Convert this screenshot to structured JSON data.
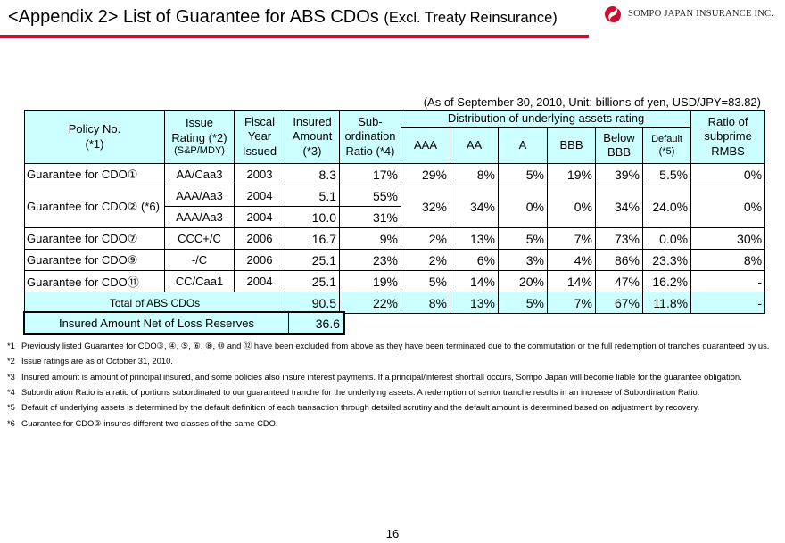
{
  "title": {
    "main": "<Appendix 2> List of Guarantee for ABS CDOs",
    "sub": "(Excl. Treaty Reinsurance)"
  },
  "logo": {
    "text": "SOMPO JAPAN INSURANCE INC.",
    "accent": "#c8102e"
  },
  "as_of": "(As of September 30, 2010, Unit: billions of yen, USD/JPY=83.82)",
  "table": {
    "headers": {
      "policy_no_1": "Policy No.",
      "policy_no_2": "(*1)",
      "issue_1": "Issue",
      "issue_2": "Rating (*2)",
      "issue_3": "(S&P/MDY)",
      "fiscal_1": "Fiscal",
      "fiscal_2": "Year",
      "fiscal_3": "Issued",
      "insured_1": "Insured",
      "insured_2": "Amount",
      "insured_3": "(*3)",
      "sub_1": "Sub-",
      "sub_2": "ordination",
      "sub_3": "Ratio (*4)",
      "distribution": "Distribution of underlying assets rating",
      "aaa": "AAA",
      "aa": "AA",
      "a": "A",
      "bbb": "BBB",
      "below_1": "Below",
      "below_2": "BBB",
      "default_1": "Default",
      "default_2": "(*5)",
      "ratio_1": "Ratio of",
      "ratio_2": "subprime",
      "ratio_3": "RMBS"
    },
    "rows": [
      {
        "policy": "Guarantee for CDO①",
        "rating": "AA/Caa3",
        "year": "2003",
        "amount": "8.3",
        "sub_ratio": "17%",
        "aaa": "29%",
        "aa": "8%",
        "a": "5%",
        "bbb": "19%",
        "below": "39%",
        "default": "5.5%",
        "subprime": "0%"
      },
      {
        "policy": "Guarantee for CDO② (*6)",
        "rating": "AAA/Aa3",
        "year": "2004",
        "amount": "5.1",
        "sub_ratio": "55%",
        "aaa": "32%",
        "aa": "34%",
        "a": "0%",
        "bbb": "0%",
        "below": "34%",
        "default": "24.0%",
        "subprime": "0%"
      },
      {
        "rating": "AAA/Aa3",
        "year": "2004",
        "amount": "10.0",
        "sub_ratio": "31%"
      },
      {
        "policy": "Guarantee for CDO⑦",
        "rating": "CCC+/C",
        "year": "2006",
        "amount": "16.7",
        "sub_ratio": "9%",
        "aaa": "2%",
        "aa": "13%",
        "a": "5%",
        "bbb": "7%",
        "below": "73%",
        "default": "0.0%",
        "subprime": "30%"
      },
      {
        "policy": "Guarantee for CDO⑨",
        "rating": "-/C",
        "year": "2006",
        "amount": "25.1",
        "sub_ratio": "23%",
        "aaa": "2%",
        "aa": "6%",
        "a": "3%",
        "bbb": "4%",
        "below": "86%",
        "default": "23.3%",
        "subprime": "8%"
      },
      {
        "policy": "Guarantee for CDO⑪",
        "rating": "CC/Caa1",
        "year": "2004",
        "amount": "25.1",
        "sub_ratio": "19%",
        "aaa": "5%",
        "aa": "14%",
        "a": "20%",
        "bbb": "14%",
        "below": "47%",
        "default": "16.2%",
        "subprime": "-"
      }
    ],
    "total": {
      "label": "Total of ABS CDOs",
      "amount": "90.5",
      "sub_ratio": "22%",
      "aaa": "8%",
      "aa": "13%",
      "a": "5%",
      "bbb": "7%",
      "below": "67%",
      "default": "11.8%",
      "subprime": "-"
    }
  },
  "net": {
    "label": "Insured Amount Net of Loss Reserves",
    "value": "36.6"
  },
  "notes": [
    {
      "mark": "*1",
      "text": "Previously listed Guarantee for CDO③, ④, ⑤, ⑥, ⑧, ⑩ and ⑫ have been excluded from above as they have been terminated due to the commutation or the full redemption of tranches guaranteed by us."
    },
    {
      "mark": "*2",
      "text": "Issue ratings are as of October 31, 2010."
    },
    {
      "mark": "*3",
      "text": "Insured amount is amount of principal insured, and some policies also insure interest payments.  If a principal/interest shortfall occurs, Sompo Japan will become liable for the guarantee obligation."
    },
    {
      "mark": "*4",
      "text": "Subordination Ratio is a ratio of portions subordinated to our guaranteed tranche for the underlying assets.  A redemption of senior tranche results in an increase of Subordination Ratio."
    },
    {
      "mark": "*5",
      "text": "Default of underlying assets is determined by the default definition of each transaction through detailed scrutiny and the default amount is determined based on adjustment by recovery."
    },
    {
      "mark": "*6",
      "text": "Guarantee for CDO② insures different two classes of the same CDO."
    }
  ],
  "page_number": "16"
}
